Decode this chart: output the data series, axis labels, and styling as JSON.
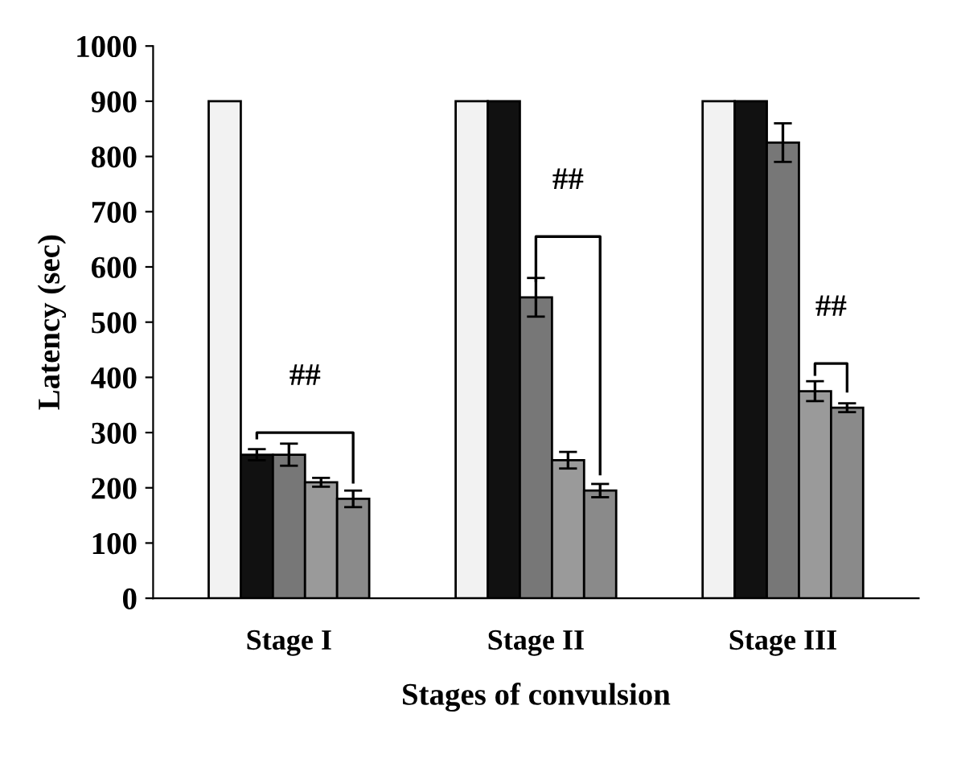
{
  "chart_data": {
    "type": "bar",
    "xlabel": "Stages of convulsion",
    "ylabel": "Latency (sec)",
    "categories": [
      "Stage I",
      "Stage II",
      "Stage III"
    ],
    "series": [
      {
        "color": "#f2f2f2",
        "values": [
          900,
          900,
          900
        ]
      },
      {
        "color": "#111111",
        "values": [
          260,
          900,
          900
        ],
        "errors": [
          10,
          null,
          null
        ]
      },
      {
        "color": "#777777",
        "values": [
          260,
          545,
          825
        ],
        "errors": [
          20,
          35,
          35
        ]
      },
      {
        "color": "#9a9a9a",
        "values": [
          210,
          250,
          375
        ],
        "errors": [
          8,
          15,
          18
        ]
      },
      {
        "color": "#8a8a8a",
        "values": [
          180,
          195,
          345
        ],
        "errors": [
          15,
          12,
          8
        ]
      }
    ],
    "ylim": [
      0,
      1000
    ],
    "yticks": [
      0,
      100,
      200,
      300,
      400,
      500,
      600,
      700,
      800,
      900,
      1000
    ],
    "grid": false,
    "legend": false,
    "annotations": [
      "##",
      "##",
      "##"
    ]
  }
}
